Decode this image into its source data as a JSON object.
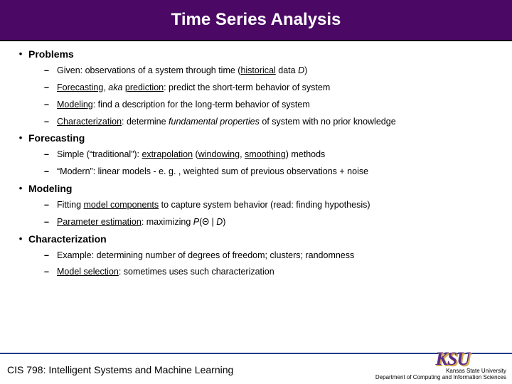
{
  "title": "Time Series Analysis",
  "sections": {
    "problems": {
      "title": "Problems",
      "items": [
        "Given: observations of a system through time (<span class='u'>historical</span> data <span class='i'>D</span>)",
        "<span class='u'>Forecasting</span>, <span class='i'>aka</span> <span class='u'>prediction</span>: predict the short-term behavior of system",
        "<span class='u'>Modeling</span>: find a description for the long-term behavior of system",
        "<span class='u'>Characterization</span>: determine <span class='i'>fundamental properties</span> of system with no prior knowledge"
      ]
    },
    "forecasting": {
      "title": "Forecasting",
      "items": [
        "Simple (“traditional”): <span class='u'>extrapolation</span> (<span class='u'>windowing</span>, <span class='u'>smoothing</span>) methods",
        "“Modern”: linear models - e. g. , weighted sum of previous observations + noise"
      ]
    },
    "modeling": {
      "title": "Modeling",
      "items": [
        "Fitting <span class='u'>model components</span> to capture system behavior (read: finding hypothesis)",
        "<span class='u'>Parameter estimation</span>: maximizing <span class='i'>P</span>(Θ | <span class='i'>D</span>)"
      ]
    },
    "characterization": {
      "title": "Characterization",
      "items": [
        "Example: determining number of degrees of freedom; clusters; randomness",
        "<span class='u'>Model selection</span>: sometimes uses such characterization"
      ]
    }
  },
  "footer": {
    "course": "CIS 798: Intelligent Systems and Machine Learning",
    "logo": "KSU",
    "uni": "Kansas State University",
    "dept": "Department of Computing and Information Sciences"
  },
  "colors": {
    "title_bg": "#4b0864",
    "title_fg": "#ffffff",
    "text": "#000000",
    "divider": "#1e3a8a",
    "logo": "#5b2d87",
    "logo_shadow": "#d4a84b"
  }
}
